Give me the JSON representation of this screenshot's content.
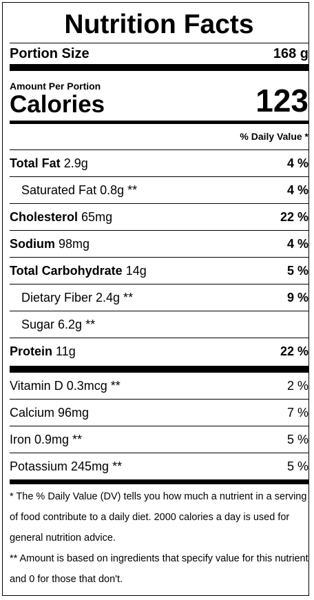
{
  "title": "Nutrition Facts",
  "portion": {
    "label": "Portion Size",
    "value": "168 g"
  },
  "amount_label": "Amount Per Portion",
  "calories": {
    "label": "Calories",
    "value": "123"
  },
  "dv_header": "% Daily Value *",
  "nutrients": [
    {
      "name": "Total Fat",
      "amount": "2.9g",
      "dv": "4 %"
    },
    {
      "name": "Saturated Fat 0.8g **",
      "amount": "",
      "dv": "4 %"
    },
    {
      "name": "Cholesterol",
      "amount": "65mg",
      "dv": "22 %"
    },
    {
      "name": "Sodium",
      "amount": "98mg",
      "dv": "4 %"
    },
    {
      "name": "Total Carbohydrate",
      "amount": "14g",
      "dv": "5 %"
    },
    {
      "name": "Dietary Fiber 2.4g **",
      "amount": "",
      "dv": "9 %"
    },
    {
      "name": "Sugar 6.2g **",
      "amount": "",
      "dv": ""
    },
    {
      "name": "Protein",
      "amount": "11g",
      "dv": "22 %"
    }
  ],
  "vitamins": [
    {
      "name": "Vitamin D 0.3mcg **",
      "dv": "2 %"
    },
    {
      "name": "Calcium 96mg",
      "dv": "7 %"
    },
    {
      "name": "Iron 0.9mg **",
      "dv": "5 %"
    },
    {
      "name": "Potassium 245mg **",
      "dv": "5 %"
    }
  ],
  "footnotes": [
    "* The % Daily Value (DV) tells you how much a nutrient in a serving of food contribute to a daily diet. 2000 calories a day is used for general nutrition advice.",
    "** Amount is based on ingredients that specify value for this nutrient and 0 for those that don't."
  ]
}
